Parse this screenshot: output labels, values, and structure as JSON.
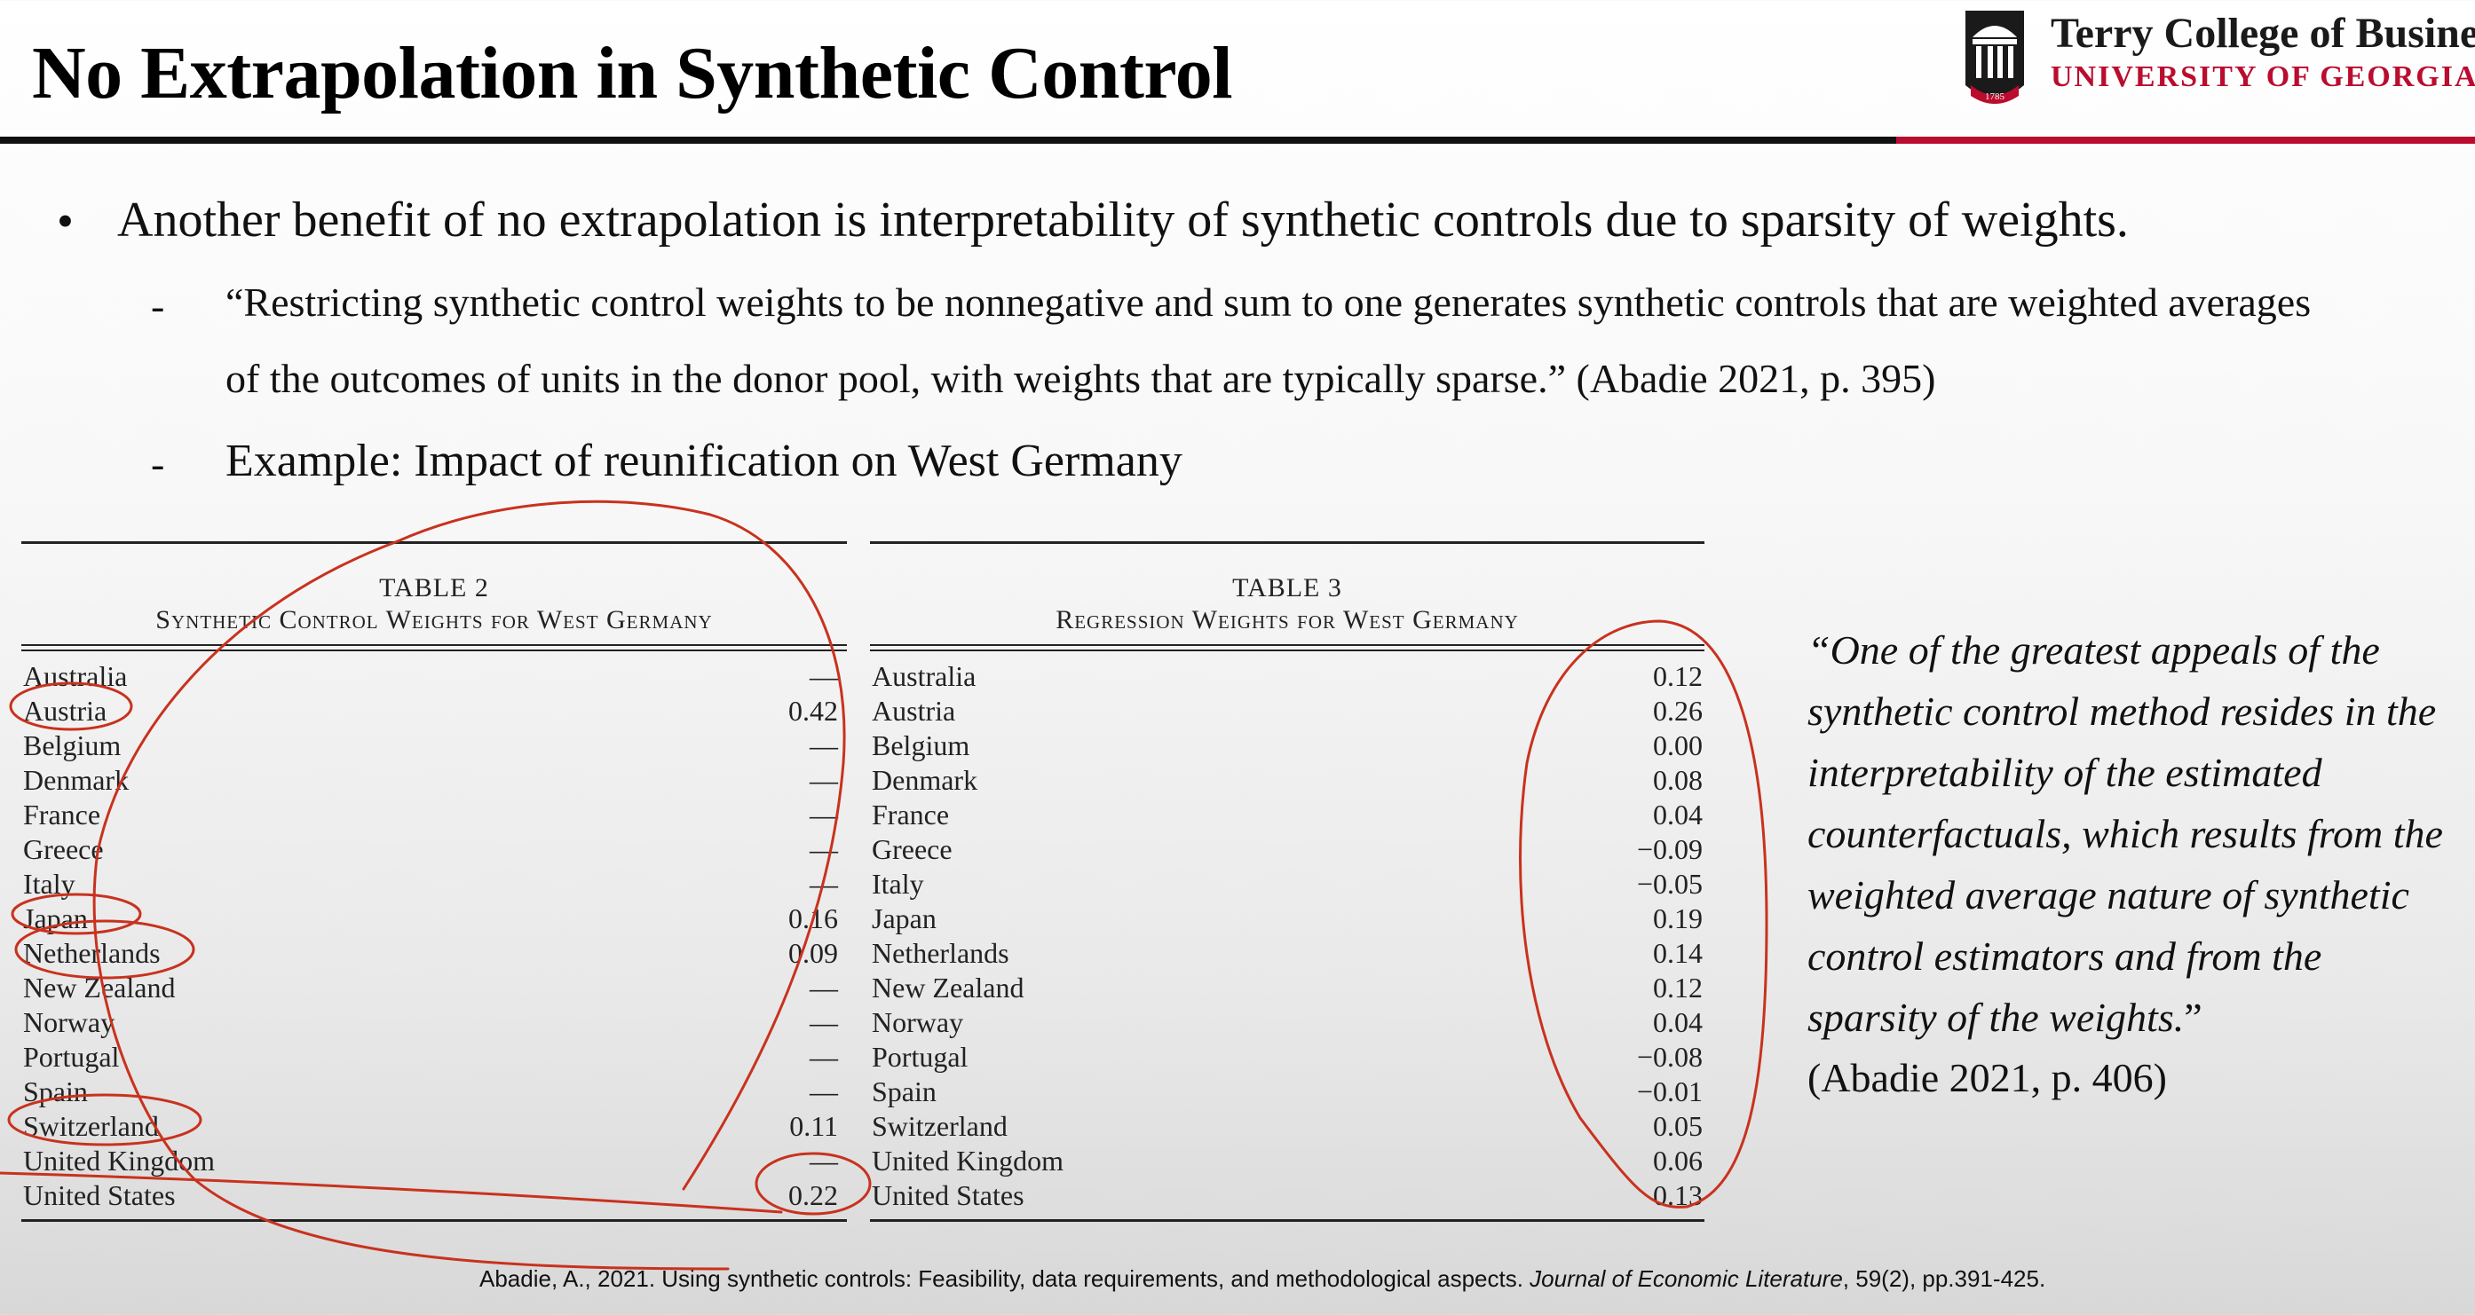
{
  "slide": {
    "title": "No Extrapolation in Synthetic Control",
    "logo": {
      "line1": "Terry College of Busines",
      "line2": "UNIVERSITY OF GEORGIA",
      "seal_year": "1785",
      "colors": {
        "brand_red": "#ba0c2f",
        "dark": "#1a1a1a"
      }
    },
    "bullet": "Another benefit of no extrapolation is interpretability of synthetic controls due to sparsity of weights.",
    "sub_quote_line1": "“Restricting synthetic control weights to be nonnegative and sum to one generates synthetic controls that are weighted averages",
    "sub_quote_line2": "of the outcomes of units in the donor pool, with weights that are typically sparse.” (Abadie 2021, p. 395)",
    "sub_example": "Example: Impact of reunification on West Germany",
    "dash": "-",
    "bullet_symbol": "•"
  },
  "table2": {
    "caption_line1": "TABLE 2",
    "caption_line2": "Synthetic Control Weights for West Germany",
    "rows": [
      {
        "country": "Australia",
        "weight": "—"
      },
      {
        "country": "Austria",
        "weight": "0.42"
      },
      {
        "country": "Belgium",
        "weight": "—"
      },
      {
        "country": "Denmark",
        "weight": "—"
      },
      {
        "country": "France",
        "weight": "—"
      },
      {
        "country": "Greece",
        "weight": "—"
      },
      {
        "country": "Italy",
        "weight": "—"
      },
      {
        "country": "Japan",
        "weight": "0.16"
      },
      {
        "country": "Netherlands",
        "weight": "0.09"
      },
      {
        "country": "New Zealand",
        "weight": "—"
      },
      {
        "country": "Norway",
        "weight": "—"
      },
      {
        "country": "Portugal",
        "weight": "—"
      },
      {
        "country": "Spain",
        "weight": "—"
      },
      {
        "country": "Switzerland",
        "weight": "0.11"
      },
      {
        "country": "United Kingdom",
        "weight": "—"
      },
      {
        "country": "United States",
        "weight": "0.22"
      }
    ]
  },
  "table3": {
    "caption_line1": "TABLE 3",
    "caption_line2": "Regression Weights for West Germany",
    "rows": [
      {
        "country": "Australia",
        "weight": "0.12"
      },
      {
        "country": "Austria",
        "weight": "0.26"
      },
      {
        "country": "Belgium",
        "weight": "0.00"
      },
      {
        "country": "Denmark",
        "weight": "0.08"
      },
      {
        "country": "France",
        "weight": "0.04"
      },
      {
        "country": "Greece",
        "weight": "−0.09"
      },
      {
        "country": "Italy",
        "weight": "−0.05"
      },
      {
        "country": "Japan",
        "weight": "0.19"
      },
      {
        "country": "Netherlands",
        "weight": "0.14"
      },
      {
        "country": "New Zealand",
        "weight": "0.12"
      },
      {
        "country": "Norway",
        "weight": "0.04"
      },
      {
        "country": "Portugal",
        "weight": "−0.08"
      },
      {
        "country": "Spain",
        "weight": "−0.01"
      },
      {
        "country": "Switzerland",
        "weight": "0.05"
      },
      {
        "country": "United Kingdom",
        "weight": "0.06"
      },
      {
        "country": "United States",
        "weight": "0.13"
      }
    ]
  },
  "side_quote": {
    "text": "“One of the greatest appeals of the synthetic control method resides in the interpretability of the estimated counterfactuals, which results from the weighted average nature of synthetic control estimators and from the sparsity of the weights.",
    "close_mark": "”",
    "citation": "(Abadie 2021, p. 406)"
  },
  "footer": {
    "prefix": "Abadie, A., 2021. Using synthetic controls: Feasibility, data requirements, and methodological aspects. ",
    "journal": "Journal of Economic Literature",
    "suffix": ", 59(2), pp.391-425."
  },
  "annotation_color": "#c8321e"
}
